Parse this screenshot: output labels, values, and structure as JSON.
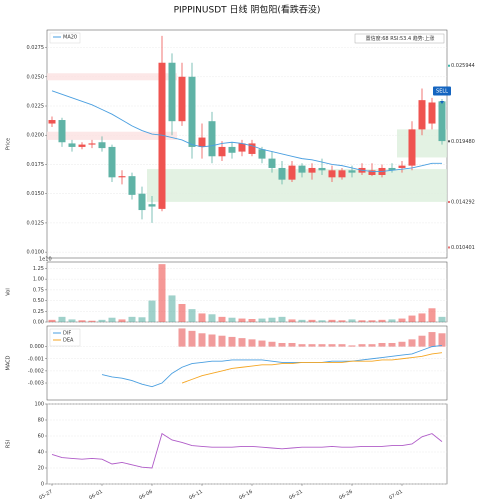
{
  "chart_data": [
    {
      "type": "candlestick",
      "title": "PIPPINUSDT  日线  阴包阳(看跌吞没)",
      "info": "置信度:68  RSI:53.4  趋势:上涨",
      "y_label": "Price",
      "categories": [
        "05-27",
        null,
        null,
        null,
        null,
        "06-01",
        null,
        null,
        null,
        null,
        "06-06",
        null,
        null,
        null,
        null,
        "06-11",
        null,
        null,
        null,
        null,
        "06-16",
        null,
        null,
        null,
        null,
        "06-21",
        null,
        null,
        null,
        null,
        "06-26",
        null,
        null,
        null,
        null,
        "07-01",
        null,
        null,
        null,
        null
      ],
      "open": [
        0.021,
        0.0213,
        0.0193,
        0.019,
        0.0192,
        0.0194,
        0.019,
        0.0164,
        0.0165,
        0.015,
        0.0141,
        0.0137,
        0.0262,
        0.0212,
        0.025,
        0.019,
        0.0212,
        0.0182,
        0.019,
        0.0186,
        0.0184,
        0.0188,
        0.018,
        0.0172,
        0.0162,
        0.0174,
        0.0168,
        0.0172,
        0.0164,
        0.0164,
        0.017,
        0.0168,
        0.0166,
        0.0166,
        0.0172,
        0.0172,
        0.0174,
        0.0205,
        0.021,
        0.0229
      ],
      "high": [
        0.0216,
        0.0215,
        0.0196,
        0.0194,
        0.0196,
        0.0199,
        0.0192,
        0.017,
        0.0168,
        0.0156,
        0.0148,
        0.0285,
        0.027,
        0.0262,
        0.0262,
        0.021,
        0.022,
        0.0195,
        0.0194,
        0.0196,
        0.0196,
        0.019,
        0.0186,
        0.0178,
        0.0178,
        0.0176,
        0.0176,
        0.018,
        0.0174,
        0.0172,
        0.0174,
        0.0176,
        0.0176,
        0.0175,
        0.0176,
        0.0178,
        0.0212,
        0.024,
        0.0232,
        0.0231
      ],
      "low": [
        0.0207,
        0.019,
        0.0186,
        0.0188,
        0.0189,
        0.0186,
        0.016,
        0.0158,
        0.0145,
        0.0128,
        0.0125,
        0.0135,
        0.02,
        0.0208,
        0.018,
        0.018,
        0.0176,
        0.0178,
        0.018,
        0.0182,
        0.0182,
        0.0176,
        0.0168,
        0.0158,
        0.016,
        0.0164,
        0.0162,
        0.0166,
        0.016,
        0.0162,
        0.0164,
        0.0166,
        0.0165,
        0.0164,
        0.0168,
        0.0168,
        0.017,
        0.02,
        0.0205,
        0.0192
      ],
      "close": [
        0.0213,
        0.0194,
        0.019,
        0.0192,
        0.0193,
        0.0189,
        0.0164,
        0.0165,
        0.0149,
        0.0136,
        0.0139,
        0.0262,
        0.0212,
        0.025,
        0.019,
        0.0198,
        0.0182,
        0.019,
        0.0185,
        0.0193,
        0.0193,
        0.018,
        0.0172,
        0.0162,
        0.0174,
        0.0168,
        0.0172,
        0.017,
        0.017,
        0.017,
        0.0168,
        0.0172,
        0.017,
        0.0172,
        0.017,
        0.0174,
        0.0205,
        0.023,
        0.0228,
        0.0195
      ],
      "up_color": "#ef5350",
      "down_color": "#5fb3a6",
      "series": [
        {
          "name": "MA20",
          "color": "#4a9fe0",
          "values": [
            0.0238,
            0.0235,
            0.0232,
            0.0229,
            0.0226,
            0.0222,
            0.0218,
            0.0213,
            0.0208,
            0.0204,
            0.0201,
            0.02,
            0.0198,
            0.0196,
            0.0192,
            0.019,
            0.0191,
            0.0193,
            0.0194,
            0.0193,
            0.0191,
            0.0188,
            0.0186,
            0.0184,
            0.0182,
            0.018,
            0.0179,
            0.0177,
            0.0175,
            0.0174,
            0.0172,
            0.017,
            0.0169,
            0.0169,
            0.017,
            0.0171,
            0.0172,
            0.0174,
            0.0176,
            0.0176
          ]
        }
      ],
      "zones": [
        {
          "low": 0.0247,
          "high": 0.0253,
          "start": 0,
          "end": 12,
          "color": "#fbe1e1"
        },
        {
          "low": 0.0196,
          "high": 0.0203,
          "start": 0,
          "end": 12,
          "color": "#fbe1e1"
        },
        {
          "low": 0.0143,
          "high": 0.0171,
          "start": 10,
          "end": 39,
          "color": "#dcefdc"
        },
        {
          "low": 0.0181,
          "high": 0.0205,
          "start": 35,
          "end": 39,
          "color": "#dcefdc"
        }
      ],
      "levels": [
        {
          "value": 0.025944,
          "label": "0.025944",
          "color": "#3bb3a8"
        },
        {
          "value": 0.01948,
          "label": "0.019480",
          "color": "#555555"
        },
        {
          "value": 0.014292,
          "label": "0.014292",
          "color": "#e57373"
        },
        {
          "value": 0.010401,
          "label": "0.010401",
          "color": "#e57373"
        }
      ],
      "annotation": {
        "text": "SELL",
        "index": 39,
        "color": "#1565c0"
      },
      "ylim": [
        0.0095,
        0.029
      ],
      "yticks": [
        {
          "value": 0.01,
          "label": "0.0100"
        },
        {
          "value": 0.0125,
          "label": "0.0125"
        },
        {
          "value": 0.015,
          "label": "0.0150"
        },
        {
          "value": 0.0175,
          "label": "0.0175"
        },
        {
          "value": 0.02,
          "label": "0.0200"
        },
        {
          "value": 0.0225,
          "label": "0.0225"
        },
        {
          "value": 0.025,
          "label": "0.0250"
        },
        {
          "value": 0.0275,
          "label": "0.0275"
        }
      ],
      "grid": true
    },
    {
      "type": "bar",
      "y_label": "Vol",
      "scale_label": "1e10",
      "values": [
        0.05,
        0.12,
        0.06,
        0.04,
        0.03,
        0.05,
        0.1,
        0.06,
        0.12,
        0.11,
        0.5,
        1.35,
        0.62,
        0.42,
        0.3,
        0.2,
        0.18,
        0.12,
        0.1,
        0.08,
        0.07,
        0.08,
        0.1,
        0.12,
        0.06,
        0.05,
        0.05,
        0.04,
        0.05,
        0.04,
        0.06,
        0.04,
        0.04,
        0.05,
        0.06,
        0.08,
        0.15,
        0.2,
        0.32,
        0.12
      ],
      "ylim": [
        0,
        1.4
      ],
      "yticks": [
        {
          "value": 0,
          "label": "0.00"
        },
        {
          "value": 0.25,
          "label": "0.25"
        },
        {
          "value": 0.5,
          "label": "0.50"
        },
        {
          "value": 0.75,
          "label": "0.75"
        },
        {
          "value": 1,
          "label": "1.00"
        },
        {
          "value": 1.25,
          "label": "1.25"
        }
      ],
      "grid": true
    },
    {
      "type": "line",
      "y_label": "MACD",
      "series": [
        {
          "name": "DIF",
          "color": "#4a9fe0",
          "values": [
            null,
            null,
            null,
            null,
            null,
            -0.0023,
            -0.0025,
            -0.0026,
            -0.0028,
            -0.0031,
            -0.0033,
            -0.003,
            -0.0022,
            -0.0017,
            -0.0014,
            -0.0013,
            -0.0012,
            -0.0012,
            -0.0011,
            -0.0011,
            -0.0011,
            -0.0011,
            -0.0012,
            -0.0013,
            -0.0013,
            -0.0013,
            -0.0013,
            -0.0013,
            -0.0012,
            -0.0012,
            -0.0012,
            -0.0011,
            -0.001,
            -0.0009,
            -0.0008,
            -0.0007,
            -0.0006,
            -0.0003,
            0.0,
            0.0001
          ]
        },
        {
          "name": "DEA",
          "color": "#f5a623",
          "values": [
            null,
            null,
            null,
            null,
            null,
            null,
            null,
            null,
            null,
            null,
            null,
            null,
            null,
            -0.003,
            -0.0027,
            -0.0024,
            -0.0022,
            -0.002,
            -0.0018,
            -0.0017,
            -0.0016,
            -0.0015,
            -0.0015,
            -0.0014,
            -0.0014,
            -0.0013,
            -0.0013,
            -0.0013,
            -0.0013,
            -0.0013,
            -0.0012,
            -0.0012,
            -0.0012,
            -0.0011,
            -0.0011,
            -0.001,
            -0.0009,
            -0.0008,
            -0.0006,
            -0.0005
          ]
        }
      ],
      "histogram": {
        "color": "#ef8a8a",
        "values": [
          null,
          null,
          null,
          null,
          null,
          null,
          null,
          null,
          null,
          null,
          null,
          null,
          null,
          0.0015,
          0.0013,
          0.0011,
          0.001,
          0.0009,
          0.0008,
          0.0007,
          0.0006,
          0.0005,
          0.0004,
          0.0003,
          0.0003,
          0.0002,
          0.0002,
          0.0002,
          0.0002,
          0.0002,
          0.0001,
          0.0002,
          0.0002,
          0.0003,
          0.0003,
          0.0004,
          0.0006,
          0.0009,
          0.0012,
          0.0011
        ]
      },
      "ylim": [
        -0.0044,
        0.0017
      ],
      "yticks": [
        {
          "value": -0.003,
          "label": "-0.003"
        },
        {
          "value": -0.002,
          "label": "-0.002"
        },
        {
          "value": -0.001,
          "label": "-0.001"
        },
        {
          "value": 0,
          "label": "0.000"
        }
      ],
      "grid": true
    },
    {
      "type": "line",
      "y_label": "RSI",
      "color": "#b05cc8",
      "values": [
        37,
        33,
        32,
        31,
        32,
        31,
        25,
        27,
        24,
        21,
        20,
        63,
        55,
        52,
        48,
        47,
        46,
        46,
        46,
        47,
        47,
        46,
        45,
        44,
        45,
        46,
        46,
        46,
        47,
        46,
        46,
        47,
        47,
        47,
        48,
        48,
        50,
        59,
        63,
        53
      ],
      "ylim": [
        0,
        100
      ],
      "yticks": [
        0,
        20,
        40,
        60,
        80,
        100
      ],
      "grid": true
    }
  ]
}
